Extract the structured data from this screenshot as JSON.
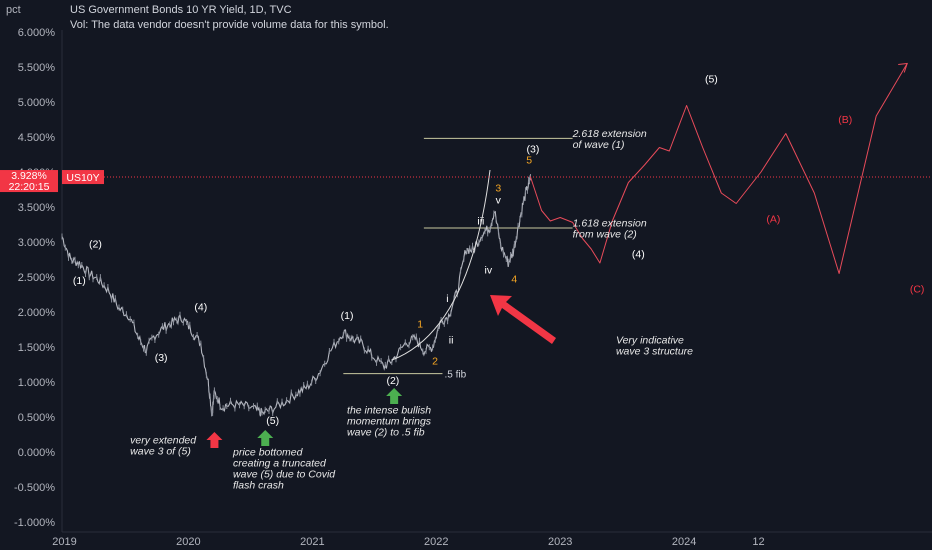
{
  "header": {
    "title": "US Government Bonds 10 YR Yield, 1D, TVC",
    "vol_note": "Vol: The data vendor doesn't provide volume data for this symbol.",
    "unit": "pct"
  },
  "price_tag": {
    "value": "3.928%",
    "countdown": "22:20:15",
    "symbol": "US10Y"
  },
  "colors": {
    "background": "#131722",
    "price_tag": "#f23645",
    "projection": "#e84b5a",
    "arrow_red": "#f23645",
    "arrow_green": "#4caf50",
    "candle": "#d1d4dc"
  },
  "chart_data": {
    "type": "line",
    "title": "US Government Bonds 10 YR Yield, 1D, TVC",
    "ylabel": "pct",
    "ylim": [
      -1.0,
      6.0
    ],
    "yticks": [
      "6.000%",
      "5.500%",
      "5.000%",
      "4.500%",
      "4.000%",
      "3.500%",
      "3.000%",
      "2.500%",
      "2.000%",
      "1.500%",
      "1.000%",
      "0.500%",
      "0.000%",
      "-0.500%",
      "-1.000%"
    ],
    "ytick_values": [
      6.0,
      5.5,
      5.0,
      4.5,
      4.0,
      3.5,
      3.0,
      2.5,
      2.0,
      1.5,
      1.0,
      0.5,
      0.0,
      -0.5,
      -1.0
    ],
    "xticks": [
      {
        "label": "2019",
        "t": 2019.0
      },
      {
        "label": "2020",
        "t": 2020.0
      },
      {
        "label": "2021",
        "t": 2021.0
      },
      {
        "label": "2022",
        "t": 2022.0
      },
      {
        "label": "2023",
        "t": 2023.0
      },
      {
        "label": "2024",
        "t": 2024.0
      },
      {
        "label": "12",
        "t": 2024.6
      }
    ],
    "price_series": [
      [
        2018.98,
        3.08
      ],
      [
        2019.05,
        2.75
      ],
      [
        2019.12,
        2.7
      ],
      [
        2019.2,
        2.55
      ],
      [
        2019.28,
        2.45
      ],
      [
        2019.36,
        2.3
      ],
      [
        2019.44,
        2.05
      ],
      [
        2019.52,
        1.95
      ],
      [
        2019.6,
        1.62
      ],
      [
        2019.66,
        1.45
      ],
      [
        2019.72,
        1.65
      ],
      [
        2019.8,
        1.78
      ],
      [
        2019.88,
        1.86
      ],
      [
        2019.95,
        1.92
      ],
      [
        2020.02,
        1.75
      ],
      [
        2020.1,
        1.55
      ],
      [
        2020.16,
        1.0
      ],
      [
        2020.19,
        0.55
      ],
      [
        2020.21,
        0.85
      ],
      [
        2020.27,
        0.65
      ],
      [
        2020.35,
        0.68
      ],
      [
        2020.45,
        0.66
      ],
      [
        2020.55,
        0.6
      ],
      [
        2020.6,
        0.55
      ],
      [
        2020.68,
        0.62
      ],
      [
        2020.78,
        0.72
      ],
      [
        2020.88,
        0.85
      ],
      [
        2020.96,
        0.93
      ],
      [
        2021.05,
        1.12
      ],
      [
        2021.15,
        1.45
      ],
      [
        2021.25,
        1.72
      ],
      [
        2021.32,
        1.62
      ],
      [
        2021.4,
        1.55
      ],
      [
        2021.48,
        1.38
      ],
      [
        2021.58,
        1.22
      ],
      [
        2021.65,
        1.32
      ],
      [
        2021.75,
        1.55
      ],
      [
        2021.83,
        1.62
      ],
      [
        2021.9,
        1.45
      ],
      [
        2021.97,
        1.5
      ],
      [
        2022.03,
        1.85
      ],
      [
        2022.1,
        1.95
      ],
      [
        2022.17,
        2.3
      ],
      [
        2022.24,
        2.9
      ],
      [
        2022.3,
        2.88
      ],
      [
        2022.37,
        3.12
      ],
      [
        2022.43,
        3.2
      ],
      [
        2022.47,
        3.45
      ],
      [
        2022.52,
        2.95
      ],
      [
        2022.58,
        2.7
      ],
      [
        2022.62,
        2.85
      ],
      [
        2022.66,
        3.2
      ],
      [
        2022.7,
        3.55
      ],
      [
        2022.74,
        3.8
      ],
      [
        2022.76,
        3.928
      ]
    ],
    "projection_path": [
      [
        2022.76,
        3.928
      ],
      [
        2022.85,
        3.45
      ],
      [
        2022.92,
        3.3
      ],
      [
        2023.0,
        3.35
      ],
      [
        2023.1,
        3.28
      ],
      [
        2023.18,
        3.05
      ],
      [
        2023.25,
        2.9
      ],
      [
        2023.32,
        2.7
      ],
      [
        2023.42,
        3.3
      ],
      [
        2023.55,
        3.85
      ],
      [
        2023.68,
        4.1
      ],
      [
        2023.8,
        4.35
      ],
      [
        2023.88,
        4.3
      ],
      [
        2024.02,
        4.95
      ],
      [
        2024.15,
        4.35
      ],
      [
        2024.3,
        3.7
      ],
      [
        2024.42,
        3.55
      ],
      [
        2024.62,
        4.0
      ],
      [
        2024.82,
        4.55
      ],
      [
        2025.05,
        3.7
      ],
      [
        2025.25,
        2.55
      ],
      [
        2025.55,
        4.8
      ],
      [
        2025.8,
        5.55
      ]
    ],
    "fib_levels": [
      {
        "label": ".5 fib",
        "y": 1.12,
        "t0": 2021.25,
        "t1": 2022.05
      },
      {
        "label": "1.618 extension from wave (2)",
        "y": 3.2,
        "t0": 2021.9,
        "t1": 2023.1
      },
      {
        "label": "2.618 extension of wave (1)",
        "y": 4.48,
        "t0": 2021.9,
        "t1": 2023.1
      }
    ],
    "last_price": 3.928
  },
  "wave_labels": [
    {
      "text": "(1)",
      "t": 2019.12,
      "y": 2.4,
      "color": "#ffffff"
    },
    {
      "text": "(2)",
      "t": 2019.25,
      "y": 2.92,
      "color": "#ffffff"
    },
    {
      "text": "(3)",
      "t": 2019.78,
      "y": 1.3,
      "color": "#ffffff"
    },
    {
      "text": "(4)",
      "t": 2020.1,
      "y": 2.02,
      "color": "#ffffff"
    },
    {
      "text": "(5)",
      "t": 2020.68,
      "y": 0.4,
      "color": "#ffffff"
    },
    {
      "text": "(1)",
      "t": 2021.28,
      "y": 1.9,
      "color": "#ffffff"
    },
    {
      "text": "(2)",
      "t": 2021.65,
      "y": 0.97,
      "color": "#ffffff"
    },
    {
      "text": "1",
      "t": 2021.87,
      "y": 1.78,
      "color": "#f5a623"
    },
    {
      "text": "2",
      "t": 2021.99,
      "y": 1.25,
      "color": "#f5a623"
    },
    {
      "text": "i",
      "t": 2022.09,
      "y": 2.14,
      "color": "#ffffff"
    },
    {
      "text": "ii",
      "t": 2022.12,
      "y": 1.55,
      "color": "#ffffff"
    },
    {
      "text": "iii",
      "t": 2022.36,
      "y": 3.25,
      "color": "#ffffff"
    },
    {
      "text": "iv",
      "t": 2022.42,
      "y": 2.55,
      "color": "#ffffff"
    },
    {
      "text": "v",
      "t": 2022.5,
      "y": 3.55,
      "color": "#ffffff"
    },
    {
      "text": "3",
      "t": 2022.5,
      "y": 3.72,
      "color": "#f5a623"
    },
    {
      "text": "4",
      "t": 2022.63,
      "y": 2.42,
      "color": "#f5a623"
    },
    {
      "text": "(3)",
      "t": 2022.78,
      "y": 4.28,
      "color": "#ffffff"
    },
    {
      "text": "5",
      "t": 2022.75,
      "y": 4.12,
      "color": "#f5a623"
    },
    {
      "text": "(4)",
      "t": 2023.63,
      "y": 2.78,
      "color": "#ffffff"
    },
    {
      "text": "(5)",
      "t": 2024.22,
      "y": 5.28,
      "color": "#ffffff"
    },
    {
      "text": "(A)",
      "t": 2024.72,
      "y": 3.28,
      "color": "#f23645"
    },
    {
      "text": "(B)",
      "t": 2025.3,
      "y": 4.7,
      "color": "#f23645"
    },
    {
      "text": "(C)",
      "t": 2025.88,
      "y": 2.28,
      "color": "#f23645"
    }
  ],
  "annotations": [
    {
      "lines": [
        "very extended",
        "wave 3 of (5)"
      ],
      "t": 2019.53,
      "y": 0.12
    },
    {
      "lines": [
        "price bottomed",
        "creating a truncated",
        "wave (5) due to Covid",
        "flash crash"
      ],
      "t": 2020.36,
      "y": -0.05
    },
    {
      "lines": [
        "the intense bullish",
        "momentum brings",
        "wave (2) to .5 fib"
      ],
      "t": 2021.28,
      "y": 0.55
    },
    {
      "lines": [
        "Very indicative",
        "wave 3 structure"
      ],
      "t": 2023.45,
      "y": 1.55
    },
    {
      "lines": [
        "2.618 extension",
        "of wave (1)"
      ],
      "t": 2023.1,
      "y": 4.5
    },
    {
      "lines": [
        "1.618 extension",
        "from wave (2)"
      ],
      "t": 2023.1,
      "y": 3.22
    }
  ]
}
